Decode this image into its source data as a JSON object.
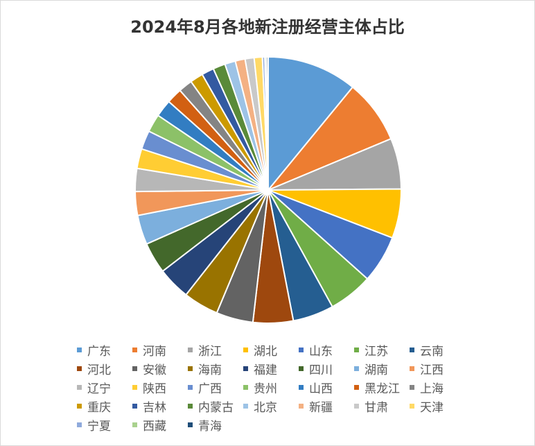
{
  "chart_data": {
    "type": "pie",
    "title": "2024年8月各地新注册经营主体占比",
    "legend_position": "bottom",
    "start_angle": "12 o'clock, clockwise",
    "series": [
      {
        "name": "广东",
        "value": 11.0,
        "color": "#5b9bd5"
      },
      {
        "name": "河南",
        "value": 7.8,
        "color": "#ed7d31"
      },
      {
        "name": "浙江",
        "value": 6.2,
        "color": "#a5a5a5"
      },
      {
        "name": "湖北",
        "value": 6.0,
        "color": "#ffc000"
      },
      {
        "name": "山东",
        "value": 5.8,
        "color": "#4472c4"
      },
      {
        "name": "江苏",
        "value": 5.4,
        "color": "#70ad47"
      },
      {
        "name": "云南",
        "value": 5.0,
        "color": "#255e91"
      },
      {
        "name": "河北",
        "value": 4.9,
        "color": "#9e480e"
      },
      {
        "name": "安徽",
        "value": 4.5,
        "color": "#636363"
      },
      {
        "name": "海南",
        "value": 4.3,
        "color": "#997300"
      },
      {
        "name": "福建",
        "value": 4.0,
        "color": "#264478"
      },
      {
        "name": "四川",
        "value": 3.8,
        "color": "#43682b"
      },
      {
        "name": "湖南",
        "value": 3.6,
        "color": "#7cafdd"
      },
      {
        "name": "江西",
        "value": 2.9,
        "color": "#f1975a"
      },
      {
        "name": "辽宁",
        "value": 2.8,
        "color": "#b7b7b7"
      },
      {
        "name": "陕西",
        "value": 2.4,
        "color": "#ffcd33"
      },
      {
        "name": "广西",
        "value": 2.3,
        "color": "#698ed0"
      },
      {
        "name": "贵州",
        "value": 2.2,
        "color": "#8cc168"
      },
      {
        "name": "山西",
        "value": 2.1,
        "color": "#327dc2"
      },
      {
        "name": "黑龙江",
        "value": 1.9,
        "color": "#d26012"
      },
      {
        "name": "上海",
        "value": 1.7,
        "color": "#848484"
      },
      {
        "name": "重庆",
        "value": 1.6,
        "color": "#cc9a00"
      },
      {
        "name": "吉林",
        "value": 1.5,
        "color": "#335aa1"
      },
      {
        "name": "内蒙古",
        "value": 1.5,
        "color": "#5a8a39"
      },
      {
        "name": "北京",
        "value": 1.3,
        "color": "#9dc3e6"
      },
      {
        "name": "新疆",
        "value": 1.2,
        "color": "#f4b183"
      },
      {
        "name": "甘肃",
        "value": 1.1,
        "color": "#c9c9c9"
      },
      {
        "name": "天津",
        "value": 1.0,
        "color": "#ffd966"
      },
      {
        "name": "宁夏",
        "value": 0.3,
        "color": "#8faadc"
      },
      {
        "name": "西藏",
        "value": 0.2,
        "color": "#a9d18e"
      },
      {
        "name": "青海",
        "value": 0.2,
        "color": "#1f4e79"
      }
    ]
  }
}
